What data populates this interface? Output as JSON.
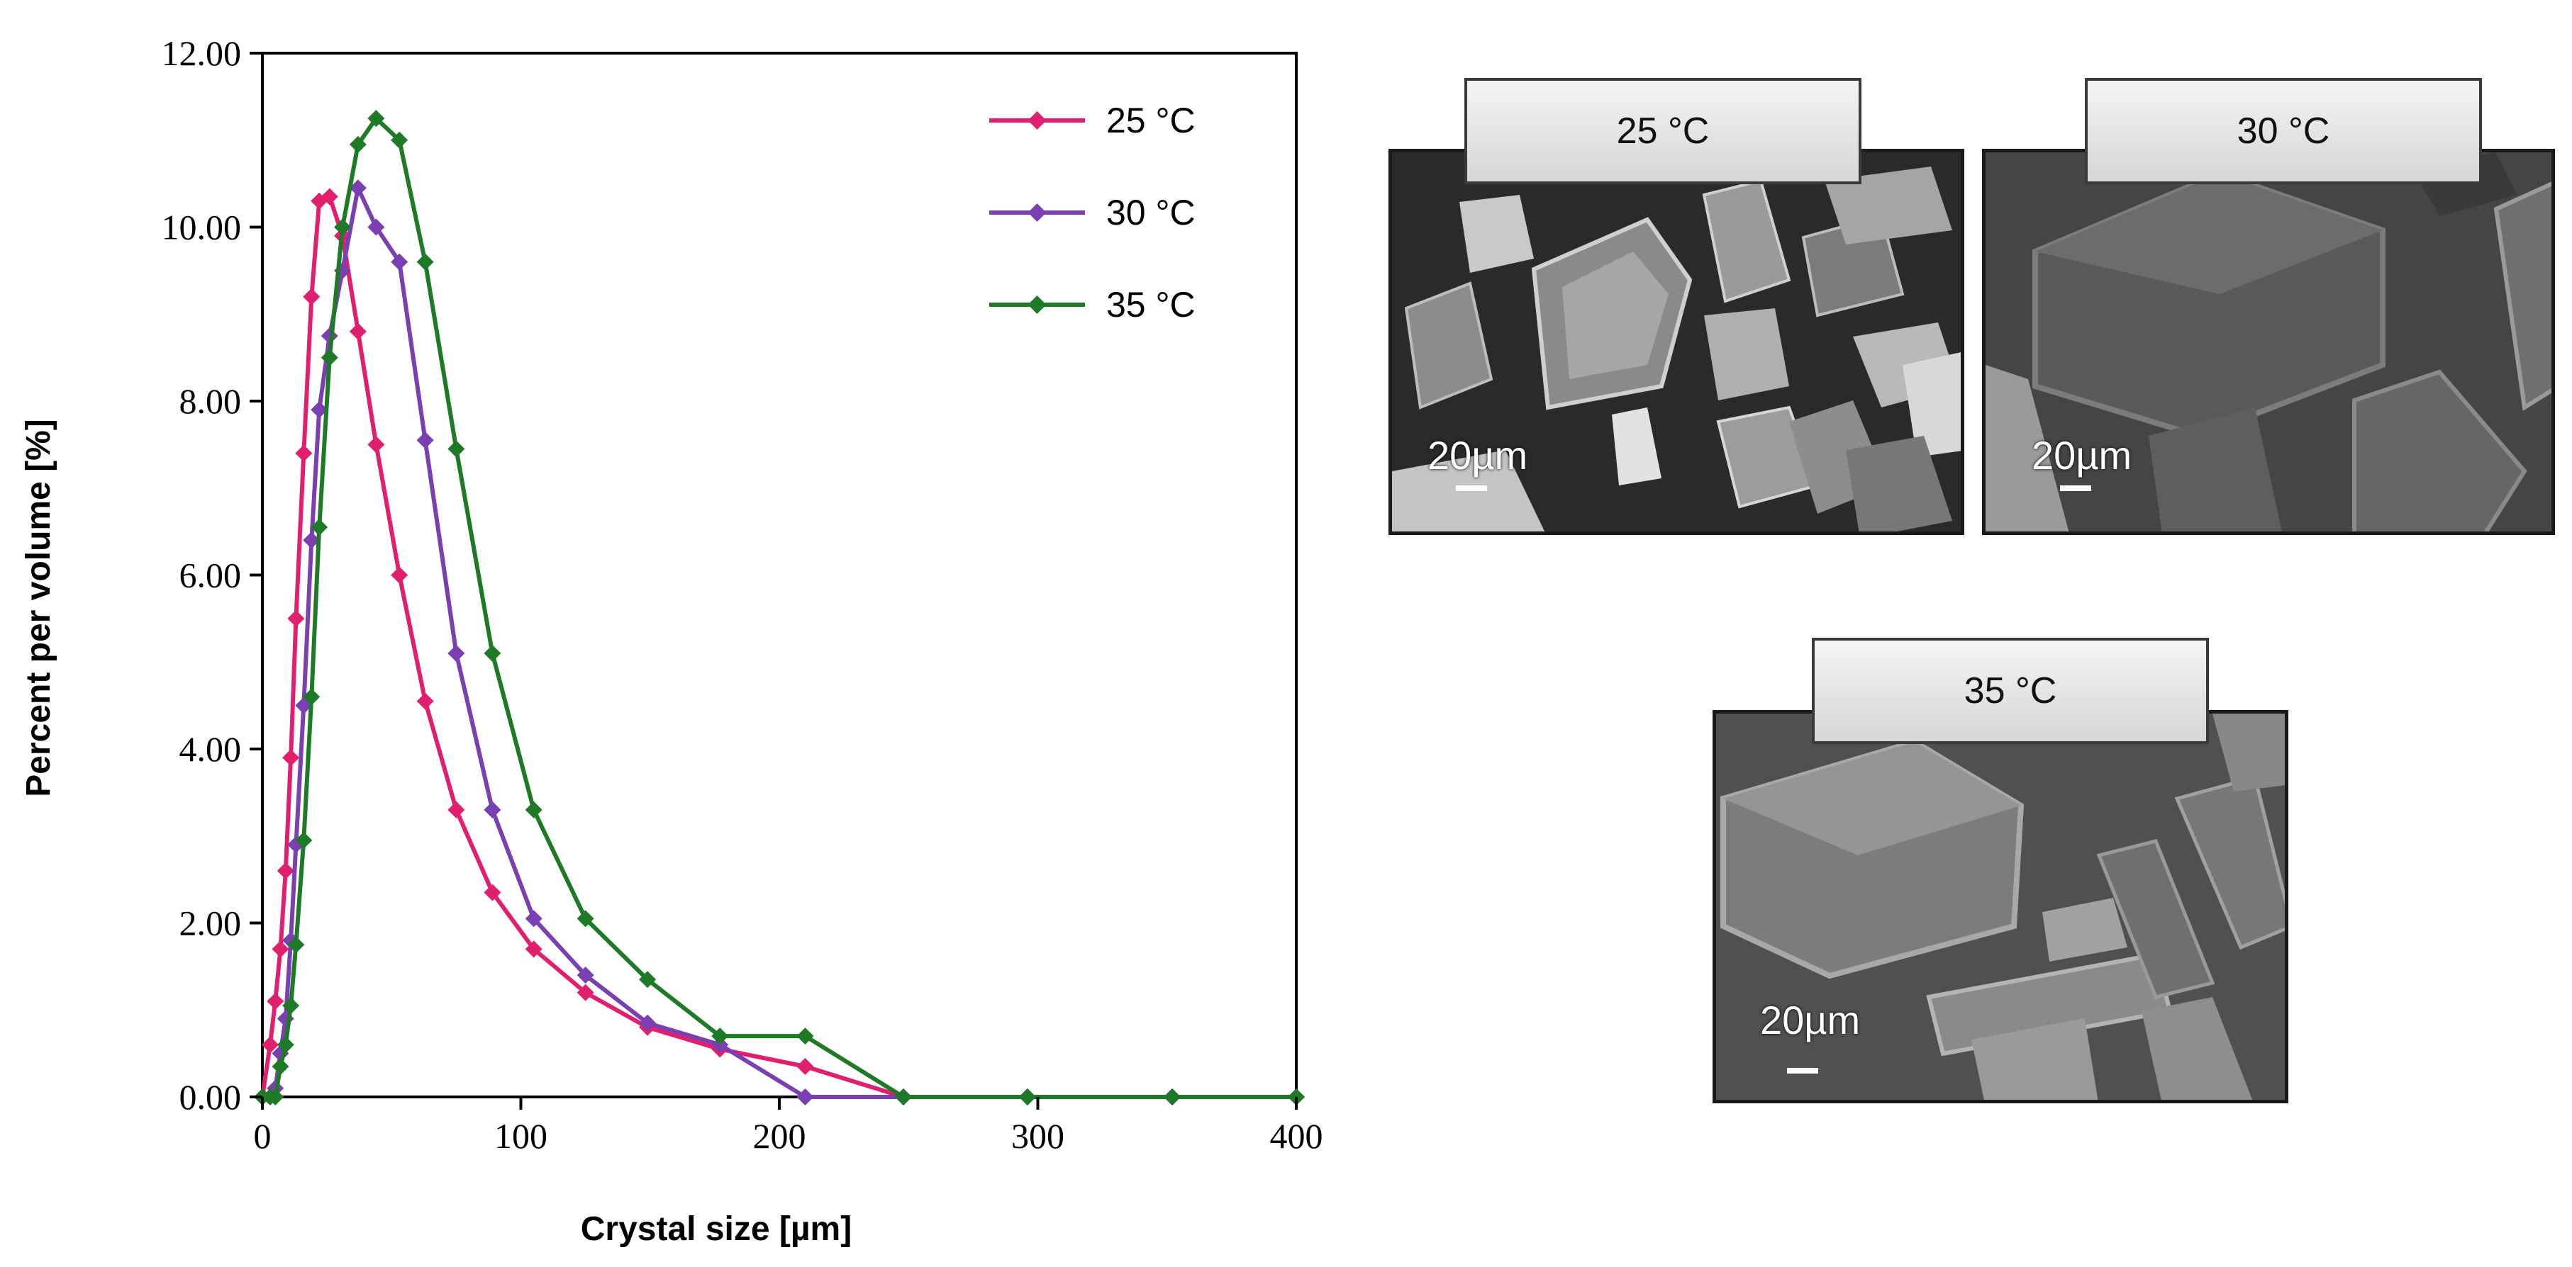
{
  "chart_data": {
    "type": "line",
    "xlabel": "Crystal size [µm]",
    "ylabel": "Percent per volume [%]",
    "xlim": [
      0,
      400
    ],
    "ylim": [
      0,
      12
    ],
    "x_ticks": [
      "0",
      "100",
      "200",
      "300",
      "400"
    ],
    "y_ticks": [
      "0.00",
      "2.00",
      "4.00",
      "6.00",
      "8.00",
      "10.00",
      "12.00"
    ],
    "grid": false,
    "legend_position": "top-right",
    "series": [
      {
        "name": "25 °C",
        "color": "#e0206e",
        "x": [
          0,
          3,
          5,
          7,
          9,
          11,
          13,
          16,
          19,
          22,
          26,
          31,
          37,
          44,
          53,
          63,
          75,
          89,
          105,
          125,
          149,
          177,
          210,
          248,
          296,
          352,
          400
        ],
        "y": [
          0,
          0.6,
          1.1,
          1.7,
          2.6,
          3.9,
          5.5,
          7.4,
          9.2,
          10.3,
          10.35,
          9.9,
          8.8,
          7.5,
          6.0,
          4.55,
          3.3,
          2.35,
          1.7,
          1.2,
          0.8,
          0.55,
          0.35,
          0,
          0,
          0,
          0
        ]
      },
      {
        "name": "30 °C",
        "color": "#7a3fb0",
        "x": [
          0,
          3,
          5,
          7,
          9,
          11,
          13,
          16,
          19,
          22,
          26,
          31,
          37,
          44,
          53,
          63,
          75,
          89,
          105,
          125,
          149,
          177,
          210,
          248,
          296,
          352,
          400
        ],
        "y": [
          0,
          0,
          0.1,
          0.5,
          0.9,
          1.8,
          2.9,
          4.5,
          6.4,
          7.9,
          8.75,
          9.5,
          10.45,
          10.0,
          9.6,
          7.55,
          5.1,
          3.3,
          2.05,
          1.4,
          0.85,
          0.6,
          0,
          0,
          0,
          0,
          0
        ]
      },
      {
        "name": "35 °C",
        "color": "#1f7a28",
        "x": [
          0,
          3,
          5,
          7,
          9,
          11,
          13,
          16,
          19,
          22,
          26,
          31,
          37,
          44,
          53,
          63,
          75,
          89,
          105,
          125,
          149,
          177,
          210,
          248,
          296,
          352,
          400
        ],
        "y": [
          0,
          0,
          0,
          0.35,
          0.6,
          1.05,
          1.75,
          2.95,
          4.6,
          6.55,
          8.5,
          10.0,
          10.95,
          11.25,
          11.0,
          9.6,
          7.45,
          5.1,
          3.3,
          2.05,
          1.35,
          0.7,
          0.7,
          0,
          0,
          0,
          0
        ]
      }
    ]
  },
  "micrographs": [
    {
      "tab_label": "25 °C",
      "scale_label": "20µm"
    },
    {
      "tab_label": "30 °C",
      "scale_label": "20µm"
    },
    {
      "tab_label": "35 °C",
      "scale_label": "20µm"
    }
  ]
}
